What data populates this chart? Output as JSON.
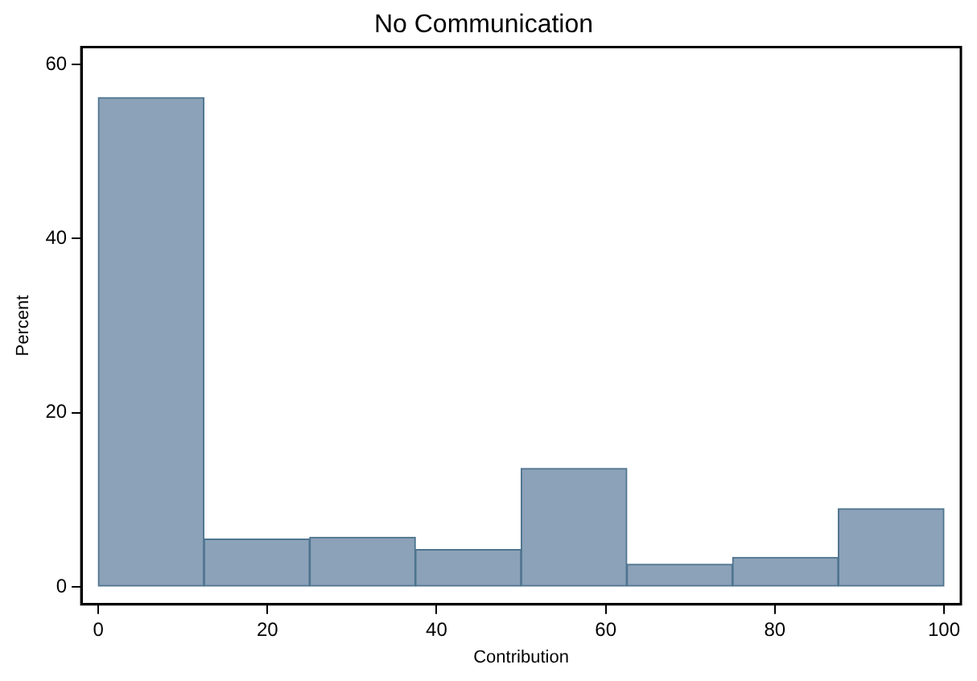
{
  "chart_data": {
    "type": "histogram",
    "title": "No Communication",
    "xlabel": "Contribution",
    "ylabel": "Percent",
    "bins": [
      0,
      12.5,
      25,
      37.5,
      50,
      62.5,
      75,
      87.5,
      100
    ],
    "values": [
      56.2,
      5.5,
      5.7,
      4.3,
      13.6,
      2.6,
      3.4,
      9.0
    ],
    "color": "#8ca2b8",
    "xlim": [
      -2,
      102
    ],
    "xticks": [
      0,
      20,
      40,
      60,
      80,
      100
    ],
    "ylim": [
      -2,
      62
    ],
    "yticks": [
      0,
      20,
      40,
      60
    ],
    "grid": false,
    "legend": false
  }
}
